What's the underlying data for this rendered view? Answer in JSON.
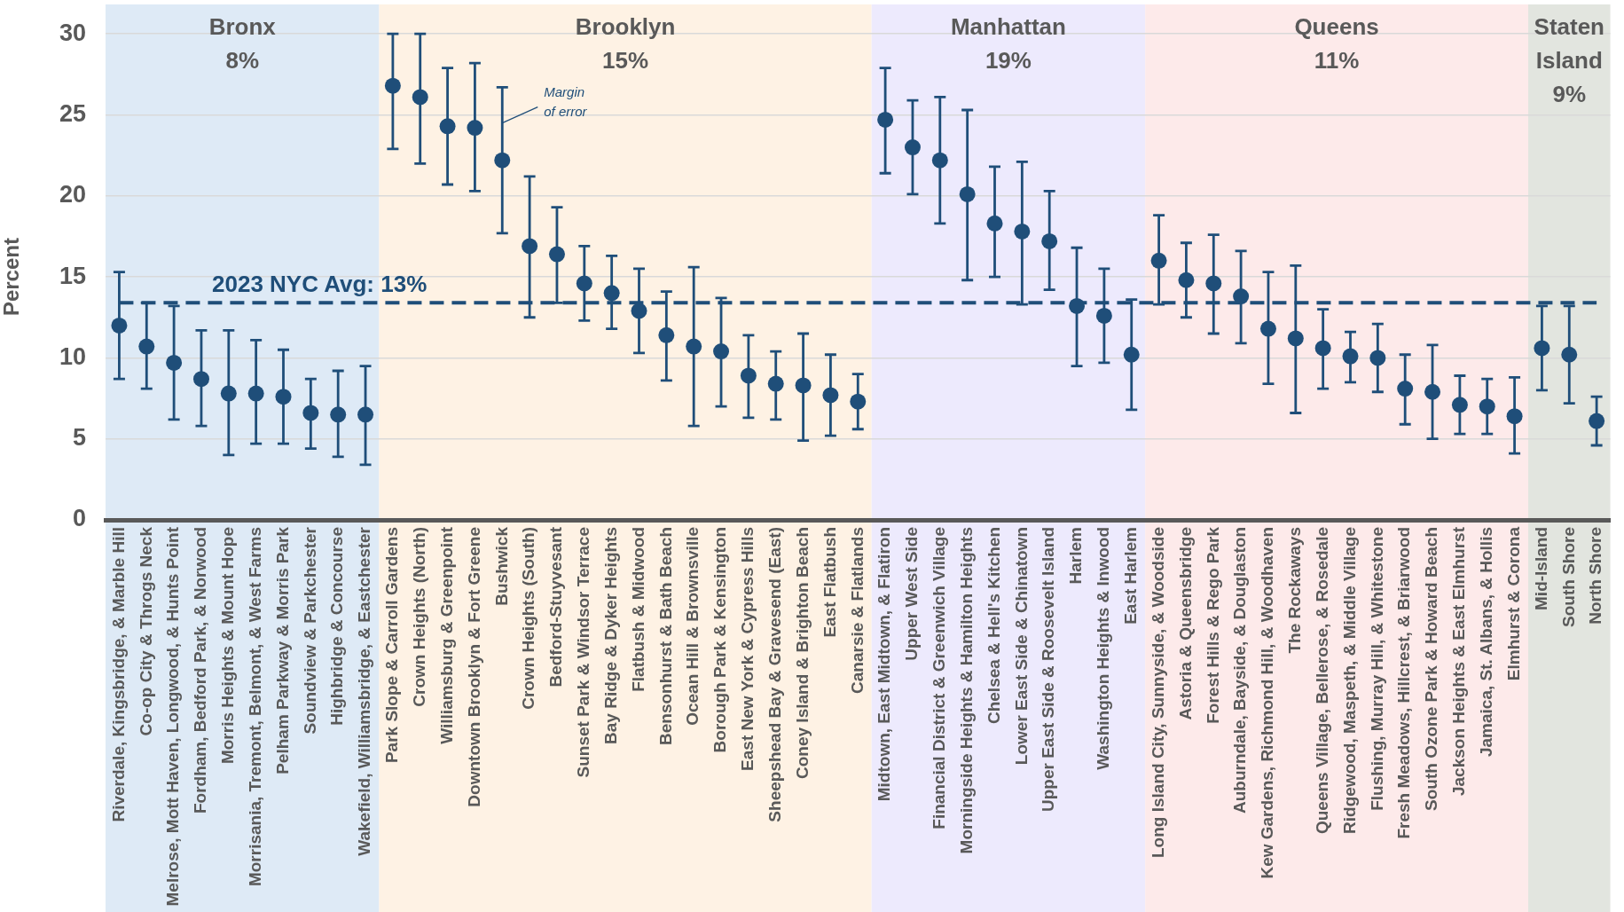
{
  "chart_data": {
    "type": "scatter",
    "ylabel": "Percent",
    "categories": [
      "Riverdale, Kingsbridge, & Marble Hill",
      "Co-op City & Throgs Neck",
      "Melrose, Mott Haven, Longwood, & Hunts Point",
      "Fordham, Bedford Park, & Norwood",
      "Morris Heights & Mount Hope",
      "Morrisania, Tremont, Belmont, & West Farms",
      "Pelham Parkway & Morris Park",
      "Soundview & Parkchester",
      "Highbridge & Concourse",
      "Wakefield, Williamsbridge, & Eastchester",
      "Park Slope & Carroll Gardens",
      "Crown Heights (North)",
      "Williamsburg & Greenpoint",
      "Downtown Brooklyn & Fort Greene",
      "Bushwick",
      "Crown Heights (South)",
      "Bedford-Stuyvesant",
      "Sunset Park & Windsor Terrace",
      "Bay Ridge & Dyker Heights",
      "Flatbush & Midwood",
      "Bensonhurst & Bath Beach",
      "Ocean Hill & Brownsville",
      "Borough Park & Kensington",
      "East New York & Cypress Hills",
      "Sheepshead Bay & Gravesend (East)",
      "Coney Island & Brighton Beach",
      "East Flatbush",
      "Canarsie & Flatlands",
      "Midtown, East Midtown, & Flatiron",
      "Upper West Side",
      "Financial District & Greenwich Village",
      "Morningside Heights & Hamilton Heights",
      "Chelsea & Hell's Kitchen",
      "Lower East Side & Chinatown",
      "Upper East Side & Roosevelt Island",
      "Harlem",
      "Washington Heights & Inwood",
      "East Harlem",
      "Long Island City, Sunnyside, & Woodside",
      "Astoria & Queensbridge",
      "Forest Hills & Rego Park",
      "Auburndale, Bayside, & Douglaston",
      "Kew Gardens, Richmond Hill, & Woodhaven",
      "The Rockaways",
      "Queens Village, Bellerose, & Rosedale",
      "Ridgewood, Maspeth, & Middle Village",
      "Flushing, Murray Hill, & Whitestone",
      "Fresh Meadows, Hillcrest, & Briarwood",
      "South Ozone Park & Howard Beach",
      "Jackson Heights & East Elmhurst",
      "Jamaica, St. Albans, & Hollis",
      "Elmhurst & Corona",
      "Mid-Island",
      "South Shore",
      "North Shore"
    ],
    "series": [
      {
        "color": "#1f4e79",
        "values": [
          12.0,
          10.7,
          9.7,
          8.7,
          7.8,
          7.8,
          7.6,
          6.6,
          6.5,
          6.5,
          26.8,
          26.1,
          24.3,
          24.2,
          22.2,
          16.9,
          16.4,
          14.6,
          14.0,
          12.9,
          11.4,
          10.7,
          10.4,
          8.9,
          8.4,
          8.3,
          7.7,
          7.3,
          24.7,
          23.0,
          22.2,
          20.1,
          18.3,
          17.8,
          17.2,
          13.2,
          12.6,
          10.2,
          16.0,
          14.8,
          14.6,
          13.8,
          11.8,
          11.2,
          10.6,
          10.1,
          10.0,
          8.1,
          7.9,
          7.1,
          7.0,
          6.4,
          10.6,
          10.2,
          6.1
        ],
        "errors": [
          [
            8.7,
            15.3
          ],
          [
            8.1,
            13.4
          ],
          [
            6.2,
            13.2
          ],
          [
            5.8,
            11.7
          ],
          [
            4.0,
            11.7
          ],
          [
            4.7,
            11.1
          ],
          [
            4.7,
            10.5
          ],
          [
            4.4,
            8.7
          ],
          [
            3.9,
            9.2
          ],
          [
            3.4,
            9.5
          ],
          [
            22.9,
            30.0
          ],
          [
            22.0,
            30.0
          ],
          [
            20.7,
            27.9
          ],
          [
            20.3,
            28.2
          ],
          [
            17.7,
            26.7
          ],
          [
            12.5,
            21.2
          ],
          [
            13.4,
            19.3
          ],
          [
            12.3,
            16.9
          ],
          [
            11.8,
            16.3
          ],
          [
            10.3,
            15.5
          ],
          [
            8.6,
            14.1
          ],
          [
            5.8,
            15.6
          ],
          [
            7.0,
            13.7
          ],
          [
            6.3,
            11.4
          ],
          [
            6.2,
            10.4
          ],
          [
            4.9,
            11.5
          ],
          [
            5.2,
            10.2
          ],
          [
            5.6,
            9.0
          ],
          [
            21.4,
            27.9
          ],
          [
            20.1,
            25.9
          ],
          [
            18.3,
            26.1
          ],
          [
            14.8,
            25.3
          ],
          [
            15.0,
            21.8
          ],
          [
            13.3,
            22.1
          ],
          [
            14.2,
            20.3
          ],
          [
            9.5,
            16.8
          ],
          [
            9.7,
            15.5
          ],
          [
            6.8,
            13.6
          ],
          [
            13.3,
            18.8
          ],
          [
            12.5,
            17.1
          ],
          [
            11.5,
            17.6
          ],
          [
            10.9,
            16.6
          ],
          [
            8.4,
            15.3
          ],
          [
            6.6,
            15.7
          ],
          [
            8.1,
            13.0
          ],
          [
            8.5,
            11.6
          ],
          [
            7.9,
            12.1
          ],
          [
            5.9,
            10.2
          ],
          [
            5.0,
            10.8
          ],
          [
            5.3,
            8.9
          ],
          [
            5.3,
            8.7
          ],
          [
            4.1,
            8.8
          ],
          [
            8.0,
            13.2
          ],
          [
            7.2,
            13.2
          ],
          [
            4.6,
            7.6
          ]
        ]
      }
    ],
    "ylim": [
      0,
      30
    ],
    "yticks": [
      0,
      5,
      10,
      15,
      20,
      25,
      30
    ],
    "grid": "y",
    "marker": "circle",
    "ref_lines": [
      {
        "axis": "y",
        "value": 13.4,
        "label": "2023 NYC Avg: 13%",
        "color": "#1f4e79",
        "line_style": "dashed"
      }
    ],
    "bands": [
      {
        "axis": "x",
        "from": "Riverdale, Kingsbridge, & Marble Hill",
        "to": "Wakefield, Williamsbridge, & Eastchester",
        "label": "Bronx\n8%",
        "color": "#deeaf6"
      },
      {
        "axis": "x",
        "from": "Park Slope & Carroll Gardens",
        "to": "Canarsie & Flatlands",
        "label": "Brooklyn\n15%",
        "color": "#fef2e4"
      },
      {
        "axis": "x",
        "from": "Midtown, East Midtown, & Flatiron",
        "to": "East Harlem",
        "label": "Manhattan\n19%",
        "color": "#edeafd"
      },
      {
        "axis": "x",
        "from": "Long Island City, Sunnyside, & Woodside",
        "to": "Elmhurst & Corona",
        "label": "Queens\n11%",
        "color": "#fdeaea"
      },
      {
        "axis": "x",
        "from": "Mid-Island",
        "to": "North Shore",
        "label": "Staten Island\n9%",
        "color": "#e2e5df"
      }
    ],
    "annotations": [
      {
        "text": "Margin of error",
        "x": "Bushwick",
        "y": 24.5
      }
    ]
  }
}
